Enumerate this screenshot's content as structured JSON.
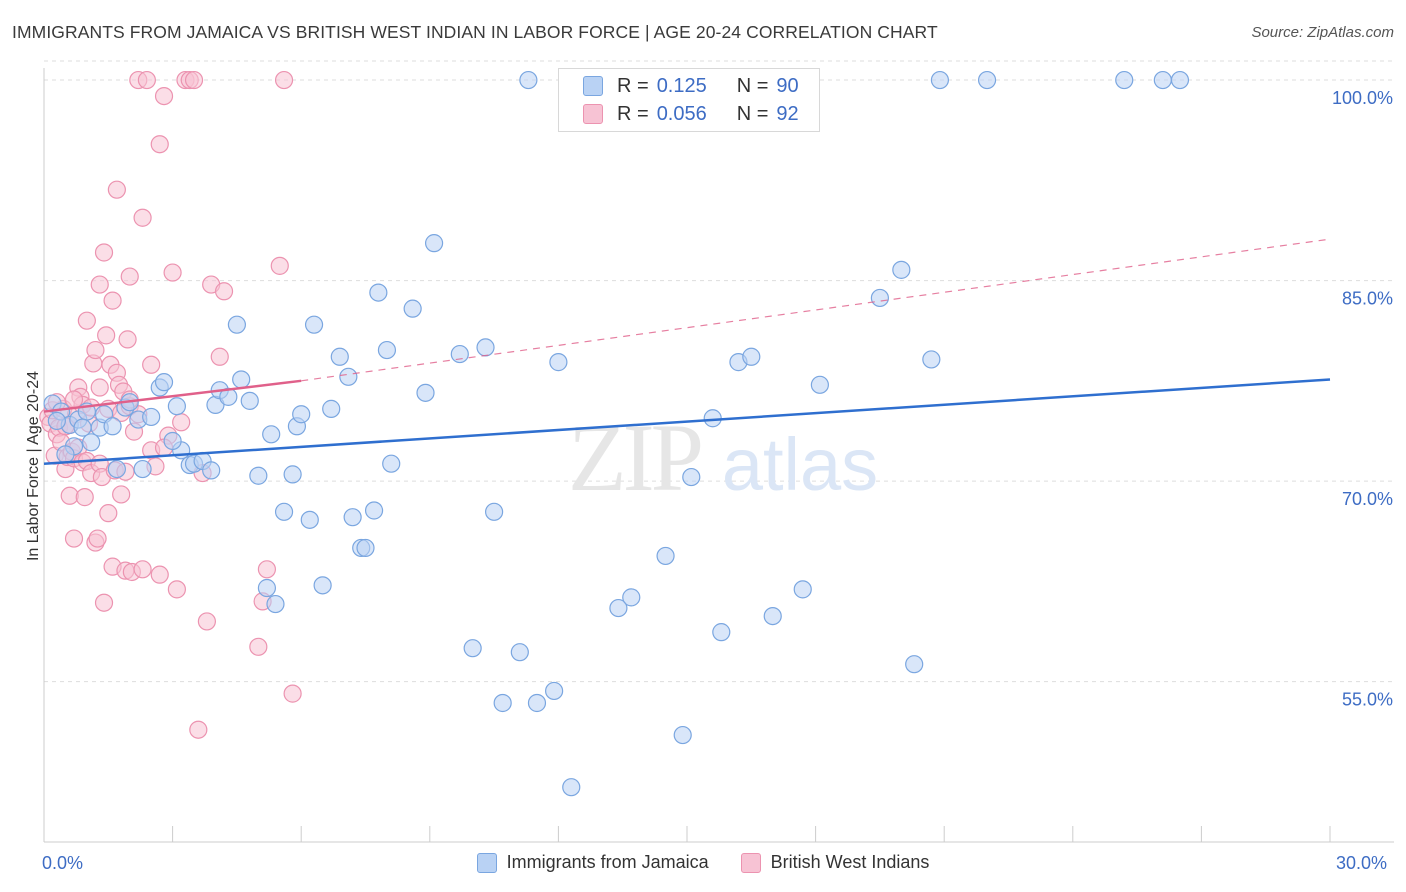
{
  "title": "IMMIGRANTS FROM JAMAICA VS BRITISH WEST INDIAN IN LABOR FORCE | AGE 20-24 CORRELATION CHART",
  "source": "Source: ZipAtlas.com",
  "legend": {
    "r_label": "R =",
    "n_label": "N =",
    "series": [
      {
        "name": "Immigrants from Jamaica",
        "r": "0.125",
        "n": "90"
      },
      {
        "name": "British West Indians",
        "r": "0.056",
        "n": "92"
      }
    ]
  },
  "watermark": {
    "zip": "ZIP",
    "atlas": "atlas"
  },
  "colors": {
    "blue_fill": "#b9d2f4",
    "blue_stroke": "#7aa6e0",
    "blue_line": "#2f6fcf",
    "pink_fill": "#f7c3d4",
    "pink_stroke": "#ec93b0",
    "pink_line": "#e0608a",
    "axis_text": "#3d6cc4",
    "grid": "#dddddd"
  },
  "chart_data": {
    "type": "scatter",
    "title": "IMMIGRANTS FROM JAMAICA VS BRITISH WEST INDIAN IN LABOR FORCE | AGE 20-24 CORRELATION CHART",
    "xlabel": "",
    "ylabel": "In Labor Force | Age 20-24",
    "xlim": [
      0,
      30
    ],
    "ylim": [
      43,
      101.5
    ],
    "x_tick_labels": [
      {
        "value": 0,
        "label": "0.0%"
      },
      {
        "value": 30,
        "label": "30.0%"
      }
    ],
    "y_tick_labels": [
      {
        "value": 55,
        "label": "55.0%"
      },
      {
        "value": 70,
        "label": "70.0%"
      },
      {
        "value": 85,
        "label": "85.0%"
      },
      {
        "value": 100,
        "label": "100.0%"
      }
    ],
    "grid": true,
    "series": [
      {
        "name": "Immigrants from Jamaica",
        "r": 0.125,
        "n": 90,
        "trend": {
          "x": [
            0,
            30
          ],
          "y": [
            71.3,
            77.6
          ],
          "style": "solid"
        },
        "points": [
          [
            0.2,
            75.8
          ],
          [
            0.4,
            75.2
          ],
          [
            0.6,
            74.2
          ],
          [
            0.7,
            72.6
          ],
          [
            0.8,
            74.6
          ],
          [
            1.0,
            75.2
          ],
          [
            1.1,
            72.9
          ],
          [
            1.3,
            74.0
          ],
          [
            1.4,
            75.0
          ],
          [
            1.6,
            74.1
          ],
          [
            1.7,
            70.9
          ],
          [
            1.9,
            75.5
          ],
          [
            2.0,
            75.9
          ],
          [
            2.2,
            74.6
          ],
          [
            2.5,
            74.8
          ],
          [
            2.7,
            77.0
          ],
          [
            2.8,
            77.4
          ],
          [
            3.1,
            75.6
          ],
          [
            3.2,
            72.3
          ],
          [
            3.4,
            71.2
          ],
          [
            3.5,
            71.3
          ],
          [
            3.7,
            71.5
          ],
          [
            3.9,
            70.8
          ],
          [
            4.0,
            75.7
          ],
          [
            4.1,
            76.8
          ],
          [
            4.3,
            76.3
          ],
          [
            4.5,
            81.7
          ],
          [
            4.6,
            77.6
          ],
          [
            4.8,
            76.0
          ],
          [
            5.0,
            70.4
          ],
          [
            5.2,
            62.0
          ],
          [
            5.4,
            60.8
          ],
          [
            5.6,
            67.7
          ],
          [
            5.8,
            70.5
          ],
          [
            5.9,
            74.1
          ],
          [
            6.0,
            75.0
          ],
          [
            6.2,
            67.1
          ],
          [
            6.3,
            81.7
          ],
          [
            6.5,
            62.2
          ],
          [
            6.7,
            75.4
          ],
          [
            6.9,
            79.3
          ],
          [
            7.1,
            77.8
          ],
          [
            7.2,
            67.3
          ],
          [
            7.4,
            65.0
          ],
          [
            7.5,
            65.0
          ],
          [
            7.7,
            67.8
          ],
          [
            7.8,
            84.1
          ],
          [
            8.0,
            79.8
          ],
          [
            8.1,
            71.3
          ],
          [
            8.6,
            82.9
          ],
          [
            8.9,
            76.6
          ],
          [
            9.1,
            87.8
          ],
          [
            9.7,
            79.5
          ],
          [
            10.0,
            57.5
          ],
          [
            10.3,
            80.0
          ],
          [
            10.5,
            67.7
          ],
          [
            10.7,
            53.4
          ],
          [
            11.1,
            57.2
          ],
          [
            11.3,
            100.0
          ],
          [
            11.5,
            53.4
          ],
          [
            11.9,
            54.3
          ],
          [
            12.0,
            78.9
          ],
          [
            12.3,
            47.1
          ],
          [
            13.4,
            60.5
          ],
          [
            13.7,
            61.3
          ],
          [
            14.5,
            64.4
          ],
          [
            14.9,
            51.0
          ],
          [
            15.1,
            70.3
          ],
          [
            15.6,
            74.7
          ],
          [
            15.8,
            58.7
          ],
          [
            16.2,
            78.9
          ],
          [
            16.5,
            79.3
          ],
          [
            17.0,
            59.9
          ],
          [
            17.7,
            61.9
          ],
          [
            18.1,
            77.2
          ],
          [
            19.5,
            83.7
          ],
          [
            20.0,
            85.8
          ],
          [
            20.3,
            56.3
          ],
          [
            20.7,
            79.1
          ],
          [
            20.9,
            100.0
          ],
          [
            22.0,
            100.0
          ],
          [
            25.2,
            100.0
          ],
          [
            26.1,
            100.0
          ],
          [
            26.5,
            100.0
          ],
          [
            0.3,
            74.5
          ],
          [
            0.5,
            72.0
          ],
          [
            0.9,
            74.0
          ],
          [
            2.3,
            70.9
          ],
          [
            3.0,
            73.0
          ],
          [
            5.3,
            73.5
          ]
        ]
      },
      {
        "name": "British West Indians",
        "r": 0.056,
        "n": 92,
        "trend": {
          "x": [
            0,
            6
          ],
          "y": [
            75.2,
            77.5
          ],
          "style": "solid"
        },
        "trend_extension": {
          "x": [
            6,
            30
          ],
          "y": [
            77.5,
            88.1
          ],
          "style": "dashed"
        },
        "points": [
          [
            0.1,
            74.8
          ],
          [
            0.15,
            74.3
          ],
          [
            0.2,
            75.3
          ],
          [
            0.25,
            71.9
          ],
          [
            0.3,
            73.5
          ],
          [
            0.35,
            74.0
          ],
          [
            0.4,
            72.9
          ],
          [
            0.45,
            75.4
          ],
          [
            0.5,
            70.9
          ],
          [
            0.55,
            71.8
          ],
          [
            0.6,
            68.9
          ],
          [
            0.6,
            74.2
          ],
          [
            0.65,
            72.2
          ],
          [
            0.7,
            65.7
          ],
          [
            0.7,
            71.7
          ],
          [
            0.75,
            75.0
          ],
          [
            0.8,
            77.0
          ],
          [
            0.8,
            72.5
          ],
          [
            0.85,
            76.3
          ],
          [
            0.9,
            71.4
          ],
          [
            0.9,
            75.7
          ],
          [
            0.95,
            68.8
          ],
          [
            1.0,
            71.5
          ],
          [
            1.0,
            82.0
          ],
          [
            1.05,
            74.3
          ],
          [
            1.1,
            70.6
          ],
          [
            1.15,
            78.8
          ],
          [
            1.2,
            65.4
          ],
          [
            1.2,
            79.8
          ],
          [
            1.25,
            65.7
          ],
          [
            1.3,
            71.3
          ],
          [
            1.3,
            84.7
          ],
          [
            1.35,
            70.3
          ],
          [
            1.4,
            60.9
          ],
          [
            1.4,
            87.1
          ],
          [
            1.45,
            80.9
          ],
          [
            1.5,
            67.6
          ],
          [
            1.5,
            75.4
          ],
          [
            1.55,
            78.7
          ],
          [
            1.6,
            63.6
          ],
          [
            1.6,
            83.5
          ],
          [
            1.65,
            70.8
          ],
          [
            1.7,
            78.1
          ],
          [
            1.7,
            91.8
          ],
          [
            1.75,
            77.2
          ],
          [
            1.8,
            75.1
          ],
          [
            1.8,
            69.0
          ],
          [
            1.85,
            76.7
          ],
          [
            1.9,
            70.7
          ],
          [
            1.9,
            63.3
          ],
          [
            1.95,
            80.6
          ],
          [
            2.0,
            85.3
          ],
          [
            2.0,
            75.6
          ],
          [
            2.05,
            63.2
          ],
          [
            2.1,
            73.7
          ],
          [
            2.2,
            100.0
          ],
          [
            2.3,
            63.4
          ],
          [
            2.3,
            89.7
          ],
          [
            2.4,
            100.0
          ],
          [
            2.5,
            78.7
          ],
          [
            2.5,
            72.3
          ],
          [
            2.6,
            71.1
          ],
          [
            2.7,
            95.2
          ],
          [
            2.7,
            63.0
          ],
          [
            2.8,
            98.8
          ],
          [
            2.9,
            73.4
          ],
          [
            3.0,
            85.6
          ],
          [
            3.1,
            61.9
          ],
          [
            3.2,
            74.4
          ],
          [
            3.3,
            100.0
          ],
          [
            3.4,
            100.0
          ],
          [
            3.5,
            100.0
          ],
          [
            3.6,
            51.4
          ],
          [
            3.7,
            70.6
          ],
          [
            3.8,
            59.5
          ],
          [
            3.9,
            84.7
          ],
          [
            4.1,
            79.3
          ],
          [
            4.2,
            84.2
          ],
          [
            5.0,
            57.6
          ],
          [
            5.1,
            61.0
          ],
          [
            5.2,
            63.4
          ],
          [
            5.5,
            86.1
          ],
          [
            5.6,
            100.0
          ],
          [
            5.8,
            54.1
          ],
          [
            0.3,
            75.9
          ],
          [
            0.5,
            74.1
          ],
          [
            0.7,
            76.1
          ],
          [
            1.1,
            75.5
          ],
          [
            1.3,
            77.0
          ],
          [
            2.0,
            76.1
          ],
          [
            2.2,
            75.0
          ],
          [
            2.8,
            72.5
          ]
        ]
      }
    ]
  }
}
